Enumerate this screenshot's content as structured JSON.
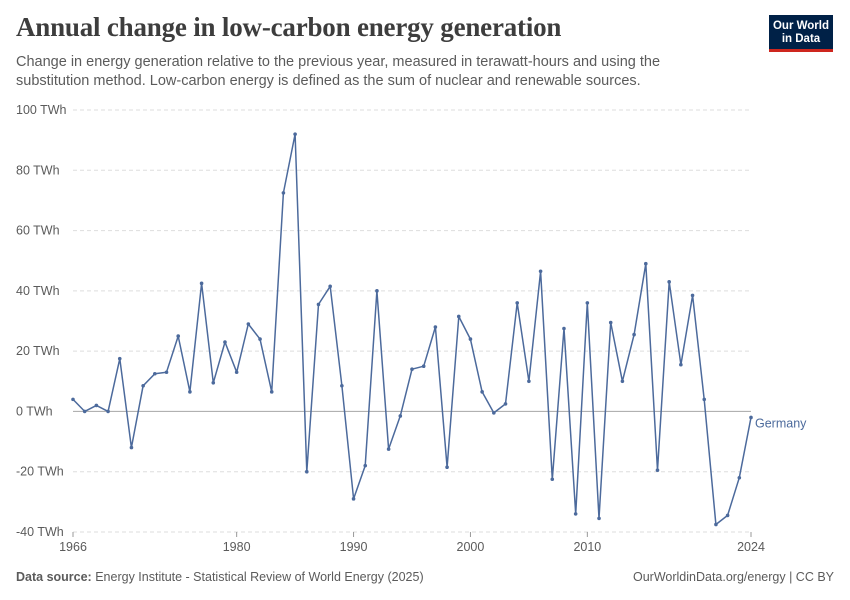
{
  "header": {
    "title": "Annual change in low-carbon energy generation",
    "subtitle": "Change in energy generation relative to the previous year, measured in terawatt-hours and using the substitution method. Low-carbon energy is defined as the sum of nuclear and renewable sources."
  },
  "logo": {
    "line1": "Our World",
    "line2": "in Data"
  },
  "footer": {
    "source_label": "Data source:",
    "source_text": "Energy Institute - Statistical Review of World Energy (2025)",
    "right_text": "OurWorldinData.org/energy | CC BY"
  },
  "colors": {
    "series": "#4c6a9c",
    "grid": "#dddddd",
    "zero": "#a6a6a6",
    "text": "#5b5b5b"
  },
  "chart_data": {
    "type": "line",
    "title": "Annual change in low-carbon energy generation",
    "ylim": [
      -40,
      100
    ],
    "yticks": [
      -40,
      -20,
      0,
      20,
      40,
      60,
      80,
      100
    ],
    "ytick_labels": [
      "-40 TWh",
      "-20 TWh",
      "0 TWh",
      "20 TWh",
      "40 TWh",
      "60 TWh",
      "80 TWh",
      "100 TWh"
    ],
    "xlim": [
      1966,
      2024
    ],
    "xticks": [
      1966,
      1980,
      1990,
      2000,
      2010,
      2024
    ],
    "xtick_labels": [
      "1966",
      "1980",
      "1990",
      "2000",
      "2010",
      "2024"
    ],
    "grid": true,
    "series": [
      {
        "name": "Germany",
        "x": [
          1966,
          1967,
          1968,
          1969,
          1970,
          1971,
          1972,
          1973,
          1974,
          1975,
          1976,
          1977,
          1978,
          1979,
          1980,
          1981,
          1982,
          1983,
          1984,
          1985,
          1986,
          1987,
          1988,
          1989,
          1990,
          1991,
          1992,
          1993,
          1994,
          1995,
          1996,
          1997,
          1998,
          1999,
          2000,
          2001,
          2002,
          2003,
          2004,
          2005,
          2006,
          2007,
          2008,
          2009,
          2010,
          2011,
          2012,
          2013,
          2014,
          2015,
          2016,
          2017,
          2018,
          2019,
          2020,
          2021,
          2022,
          2023,
          2024
        ],
        "values": [
          4,
          0,
          2,
          0,
          17.5,
          -12,
          8.5,
          12.5,
          13,
          25,
          6.5,
          42.5,
          9.5,
          23,
          13,
          29,
          24,
          6.5,
          72.5,
          92,
          -20,
          35.5,
          41.5,
          8.5,
          -29,
          -18,
          40,
          -12.5,
          -1.5,
          14,
          15,
          28,
          -18.5,
          31.5,
          24,
          6.5,
          -0.5,
          2.5,
          36,
          10,
          46.5,
          -22.5,
          27.5,
          -34,
          36,
          -35.5,
          29.5,
          10,
          25.5,
          49,
          -19.5,
          43,
          15.5,
          38.5,
          4,
          -37.5,
          -34.5,
          -22,
          -2
        ]
      }
    ]
  }
}
